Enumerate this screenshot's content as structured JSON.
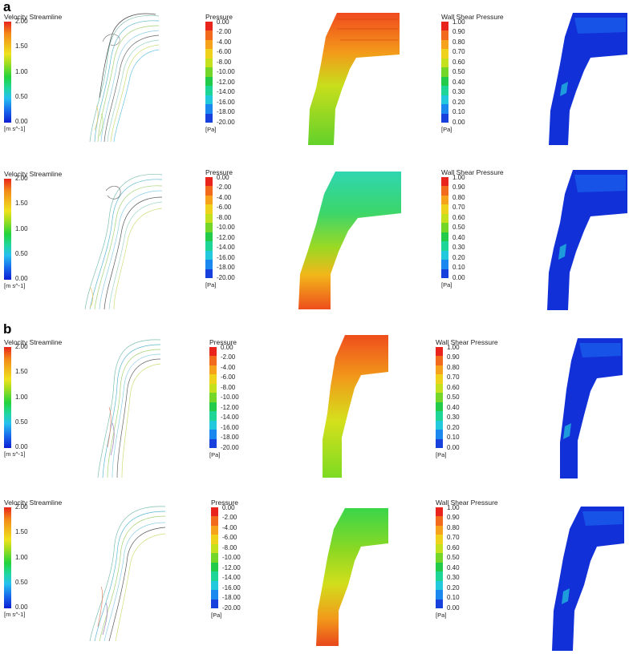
{
  "section_labels": [
    "a",
    "b"
  ],
  "legends": {
    "velocity": {
      "title": "Velocity Streamline",
      "ticks": [
        "2.00",
        "1.50",
        "1.00",
        "0.50",
        "0.00"
      ],
      "unit": "[m s^-1]"
    },
    "pressure": {
      "title": "Pressure",
      "ticks": [
        "0.00",
        "-2.00",
        "-4.00",
        "-6.00",
        "-8.00",
        "-10.00",
        "-12.00",
        "-14.00",
        "-16.00",
        "-18.00",
        "-20.00"
      ],
      "unit": "[Pa]"
    },
    "wss": {
      "title": "Wall Shear Pressure",
      "ticks": [
        "1.00",
        "0.90",
        "0.80",
        "0.70",
        "0.60",
        "0.50",
        "0.40",
        "0.30",
        "0.20",
        "0.10",
        "0.00"
      ],
      "unit": "[Pa]"
    }
  },
  "colors": {
    "discrete_scale": [
      "#e8241c",
      "#f26a1c",
      "#f6a21a",
      "#efd21b",
      "#c5e01c",
      "#73d628",
      "#22cc4a",
      "#1ed598",
      "#22c9dd",
      "#1b88ef",
      "#1840dc"
    ],
    "airway_pressure_a1": [
      "#f04a1e",
      "#f39a1a",
      "#c8de1c",
      "#62d12a"
    ],
    "airway_pressure_a2": [
      "#2fd6b0",
      "#3cd66a",
      "#9bd923",
      "#f2b61a",
      "#ee4e1c"
    ],
    "airway_pressure_b1": [
      "#ef4e1c",
      "#f19a1a",
      "#d5e01c",
      "#7ddb22"
    ],
    "airway_pressure_b2": [
      "#3ad64a",
      "#8bd823",
      "#d2de1c",
      "#f29a1a",
      "#e9471c"
    ],
    "wall_shear": [
      "#1230d8",
      "#1a62ec"
    ]
  }
}
